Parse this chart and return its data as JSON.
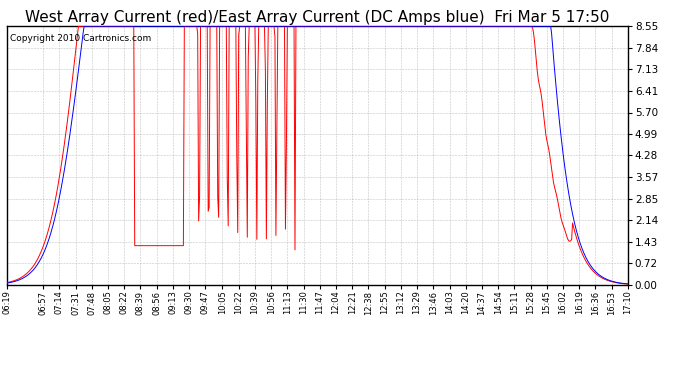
{
  "title": "West Array Current (red)/East Array Current (DC Amps blue)  Fri Mar 5 17:50",
  "copyright": "Copyright 2010 Cartronics.com",
  "yticks": [
    0.0,
    0.72,
    1.43,
    2.14,
    2.85,
    3.57,
    4.28,
    4.99,
    5.7,
    6.41,
    7.13,
    7.84,
    8.55
  ],
  "ymax": 8.55,
  "ymin": 0.0,
  "xtick_labels": [
    "06:19",
    "06:57",
    "07:14",
    "07:31",
    "07:48",
    "08:05",
    "08:22",
    "08:39",
    "08:56",
    "09:13",
    "09:30",
    "09:47",
    "10:05",
    "10:22",
    "10:39",
    "10:56",
    "11:13",
    "11:30",
    "11:47",
    "12:04",
    "12:21",
    "12:38",
    "12:55",
    "13:12",
    "13:29",
    "13:46",
    "14:03",
    "14:20",
    "14:37",
    "14:54",
    "15:11",
    "15:28",
    "15:45",
    "16:02",
    "16:19",
    "16:36",
    "16:53",
    "17:10"
  ],
  "background_color": "#ffffff",
  "plot_bg_color": "#ffffff",
  "grid_color": "#aaaaaa",
  "red_line_color": "#ff0000",
  "blue_line_color": "#0000ff",
  "title_fontsize": 11,
  "copyright_fontsize": 6.5
}
